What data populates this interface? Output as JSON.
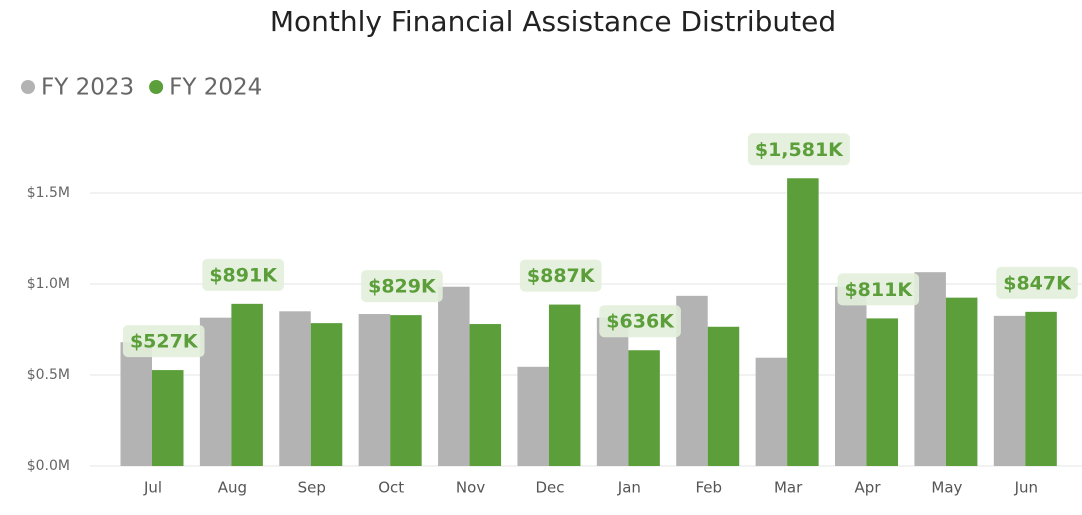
{
  "chart_data": {
    "type": "bar",
    "title": "Monthly Financial Assistance Distributed",
    "categories": [
      "Jul",
      "Aug",
      "Sep",
      "Oct",
      "Nov",
      "Dec",
      "Jan",
      "Feb",
      "Mar",
      "Apr",
      "May",
      "Jun"
    ],
    "series": [
      {
        "name": "FY 2023",
        "color": "#b3b3b3",
        "values": [
          680000,
          815000,
          850000,
          835000,
          985000,
          545000,
          815000,
          935000,
          595000,
          985000,
          1065000,
          825000
        ]
      },
      {
        "name": "FY 2024",
        "color": "#5b9e3a",
        "values": [
          527000,
          891000,
          785000,
          829000,
          780000,
          887000,
          636000,
          765000,
          1581000,
          811000,
          925000,
          847000
        ],
        "value_labels": [
          "$527K",
          "$891K",
          null,
          "$829K",
          null,
          "$887K",
          "$636K",
          null,
          "$1,581K",
          "$811K",
          null,
          "$847K"
        ]
      }
    ],
    "ylim": [
      0,
      1750000
    ],
    "yticks": [
      {
        "value": 0,
        "label": "$0.0M"
      },
      {
        "value": 500000,
        "label": "$0.5M"
      },
      {
        "value": 1000000,
        "label": "$1.0M"
      },
      {
        "value": 1500000,
        "label": "$1.5M"
      }
    ],
    "grid": true,
    "legend": "top-left"
  }
}
